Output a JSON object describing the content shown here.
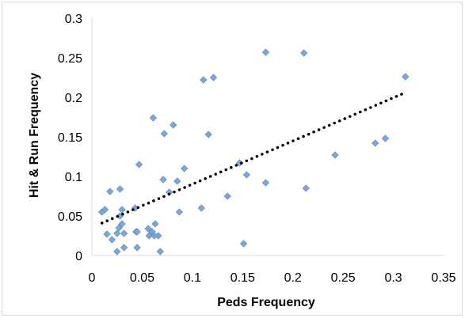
{
  "chart_data": {
    "type": "scatter",
    "title": "",
    "xlabel": "Peds Frequency",
    "ylabel": "Hit & Run Frequency",
    "xlim": [
      0,
      0.35
    ],
    "ylim": [
      0,
      0.3
    ],
    "x_ticks": [
      0,
      0.05,
      0.1,
      0.15,
      0.2,
      0.25,
      0.3,
      0.35
    ],
    "y_ticks": [
      0,
      0.05,
      0.1,
      0.15,
      0.2,
      0.25,
      0.3
    ],
    "x_tick_labels": [
      "0",
      "0.05",
      "0.1",
      "0.15",
      "0.2",
      "0.25",
      "0.3",
      "0.35"
    ],
    "y_tick_labels": [
      "0",
      "0.05",
      "0.1",
      "0.15",
      "0.2",
      "0.25",
      "0.3"
    ],
    "grid": false,
    "legend": "none",
    "marker_color": "#7ea6d9",
    "marker_edge_color": "#5b86bd",
    "trendline_color": "#000000",
    "series": [
      {
        "values": [
          [
            0.01,
            0.055
          ],
          [
            0.013,
            0.058
          ],
          [
            0.015,
            0.027
          ],
          [
            0.018,
            0.081
          ],
          [
            0.02,
            0.02
          ],
          [
            0.025,
            0.005
          ],
          [
            0.025,
            0.028
          ],
          [
            0.027,
            0.035
          ],
          [
            0.028,
            0.084
          ],
          [
            0.028,
            0.05
          ],
          [
            0.03,
            0.04
          ],
          [
            0.03,
            0.058
          ],
          [
            0.032,
            0.028
          ],
          [
            0.032,
            0.01
          ],
          [
            0.043,
            0.06
          ],
          [
            0.044,
            0.03
          ],
          [
            0.045,
            0.03
          ],
          [
            0.045,
            0.01
          ],
          [
            0.047,
            0.115
          ],
          [
            0.056,
            0.034
          ],
          [
            0.057,
            0.025
          ],
          [
            0.06,
            0.03
          ],
          [
            0.061,
            0.174
          ],
          [
            0.062,
            0.025
          ],
          [
            0.063,
            0.04
          ],
          [
            0.066,
            0.025
          ],
          [
            0.068,
            0.005
          ],
          [
            0.071,
            0.096
          ],
          [
            0.072,
            0.154
          ],
          [
            0.077,
            0.08
          ],
          [
            0.081,
            0.165
          ],
          [
            0.085,
            0.094
          ],
          [
            0.087,
            0.055
          ],
          [
            0.092,
            0.11
          ],
          [
            0.109,
            0.06
          ],
          [
            0.111,
            0.222
          ],
          [
            0.116,
            0.153
          ],
          [
            0.121,
            0.225
          ],
          [
            0.135,
            0.075
          ],
          [
            0.147,
            0.117
          ],
          [
            0.151,
            0.015
          ],
          [
            0.154,
            0.102
          ],
          [
            0.173,
            0.257
          ],
          [
            0.173,
            0.092
          ],
          [
            0.211,
            0.256
          ],
          [
            0.213,
            0.085
          ],
          [
            0.242,
            0.127
          ],
          [
            0.282,
            0.142
          ],
          [
            0.292,
            0.148
          ],
          [
            0.312,
            0.226
          ]
        ]
      }
    ],
    "trendline": {
      "x": [
        0.01,
        0.312
      ],
      "y": [
        0.041,
        0.206
      ]
    }
  }
}
